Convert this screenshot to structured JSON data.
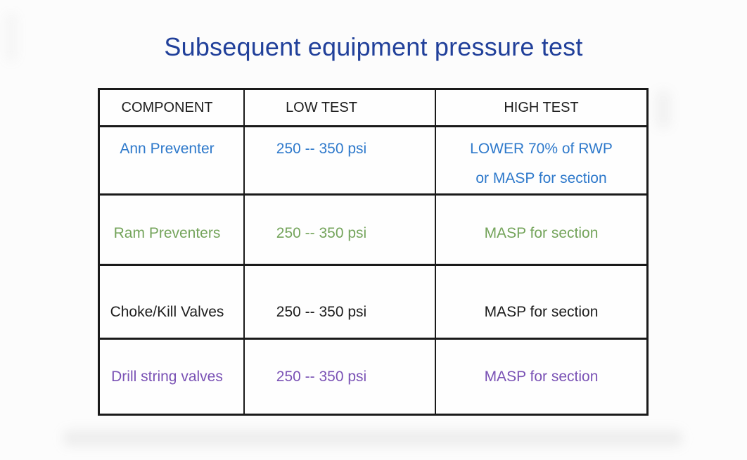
{
  "slide": {
    "title": "Subsequent equipment pressure test"
  },
  "colors": {
    "title": "#21409A",
    "header_text": "#1D1D1D",
    "border": "#1A1A1A",
    "row_ann_blue": "#2E79CB",
    "row_ram_green": "#74A45B",
    "row_choke_black": "#1D1D1D",
    "row_drill_purple": "#7A52B5"
  },
  "table": {
    "headers": [
      "COMPONENT",
      "LOW TEST",
      "HIGH TEST"
    ],
    "rows": [
      {
        "component": "Ann Preventer",
        "low_test": "250 -- 350 psi",
        "high_test": "LOWER 70% of RWP or MASP for section",
        "high_test_lines": [
          "LOWER 70% of RWP",
          "or MASP for section"
        ],
        "color": "#2E79CB"
      },
      {
        "component": "Ram Preventers",
        "low_test": "250 -- 350 psi",
        "high_test": "MASP for section",
        "color": "#74A45B"
      },
      {
        "component": "Choke/Kill Valves",
        "low_test": "250 -- 350 psi",
        "high_test": "MASP for section",
        "color": "#1D1D1D"
      },
      {
        "component": "Drill string valves",
        "low_test": "250 -- 350 psi",
        "high_test": "MASP for section",
        "color": "#7A52B5"
      }
    ]
  }
}
